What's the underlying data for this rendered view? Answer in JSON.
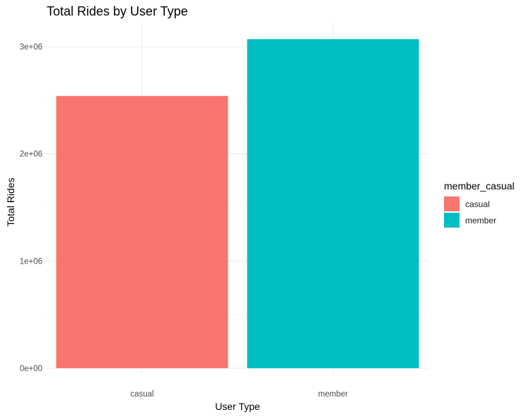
{
  "chart_data": {
    "type": "bar",
    "title": "Total Rides by User Type",
    "xlabel": "User Type",
    "ylabel": "Total Rides",
    "categories": [
      "casual",
      "member"
    ],
    "values": [
      2540000,
      3070000
    ],
    "colors": [
      "#F8766D",
      "#00BFC4"
    ],
    "ylim": [
      0,
      3200000
    ],
    "yticks": [
      0,
      1000000,
      2000000,
      3000000
    ],
    "ytick_labels": [
      "0e+00",
      "1e+06",
      "2e+06",
      "3e+06"
    ],
    "grid": true,
    "legend": {
      "title": "member_casual",
      "position": "right",
      "entries": [
        "casual",
        "member"
      ]
    }
  }
}
